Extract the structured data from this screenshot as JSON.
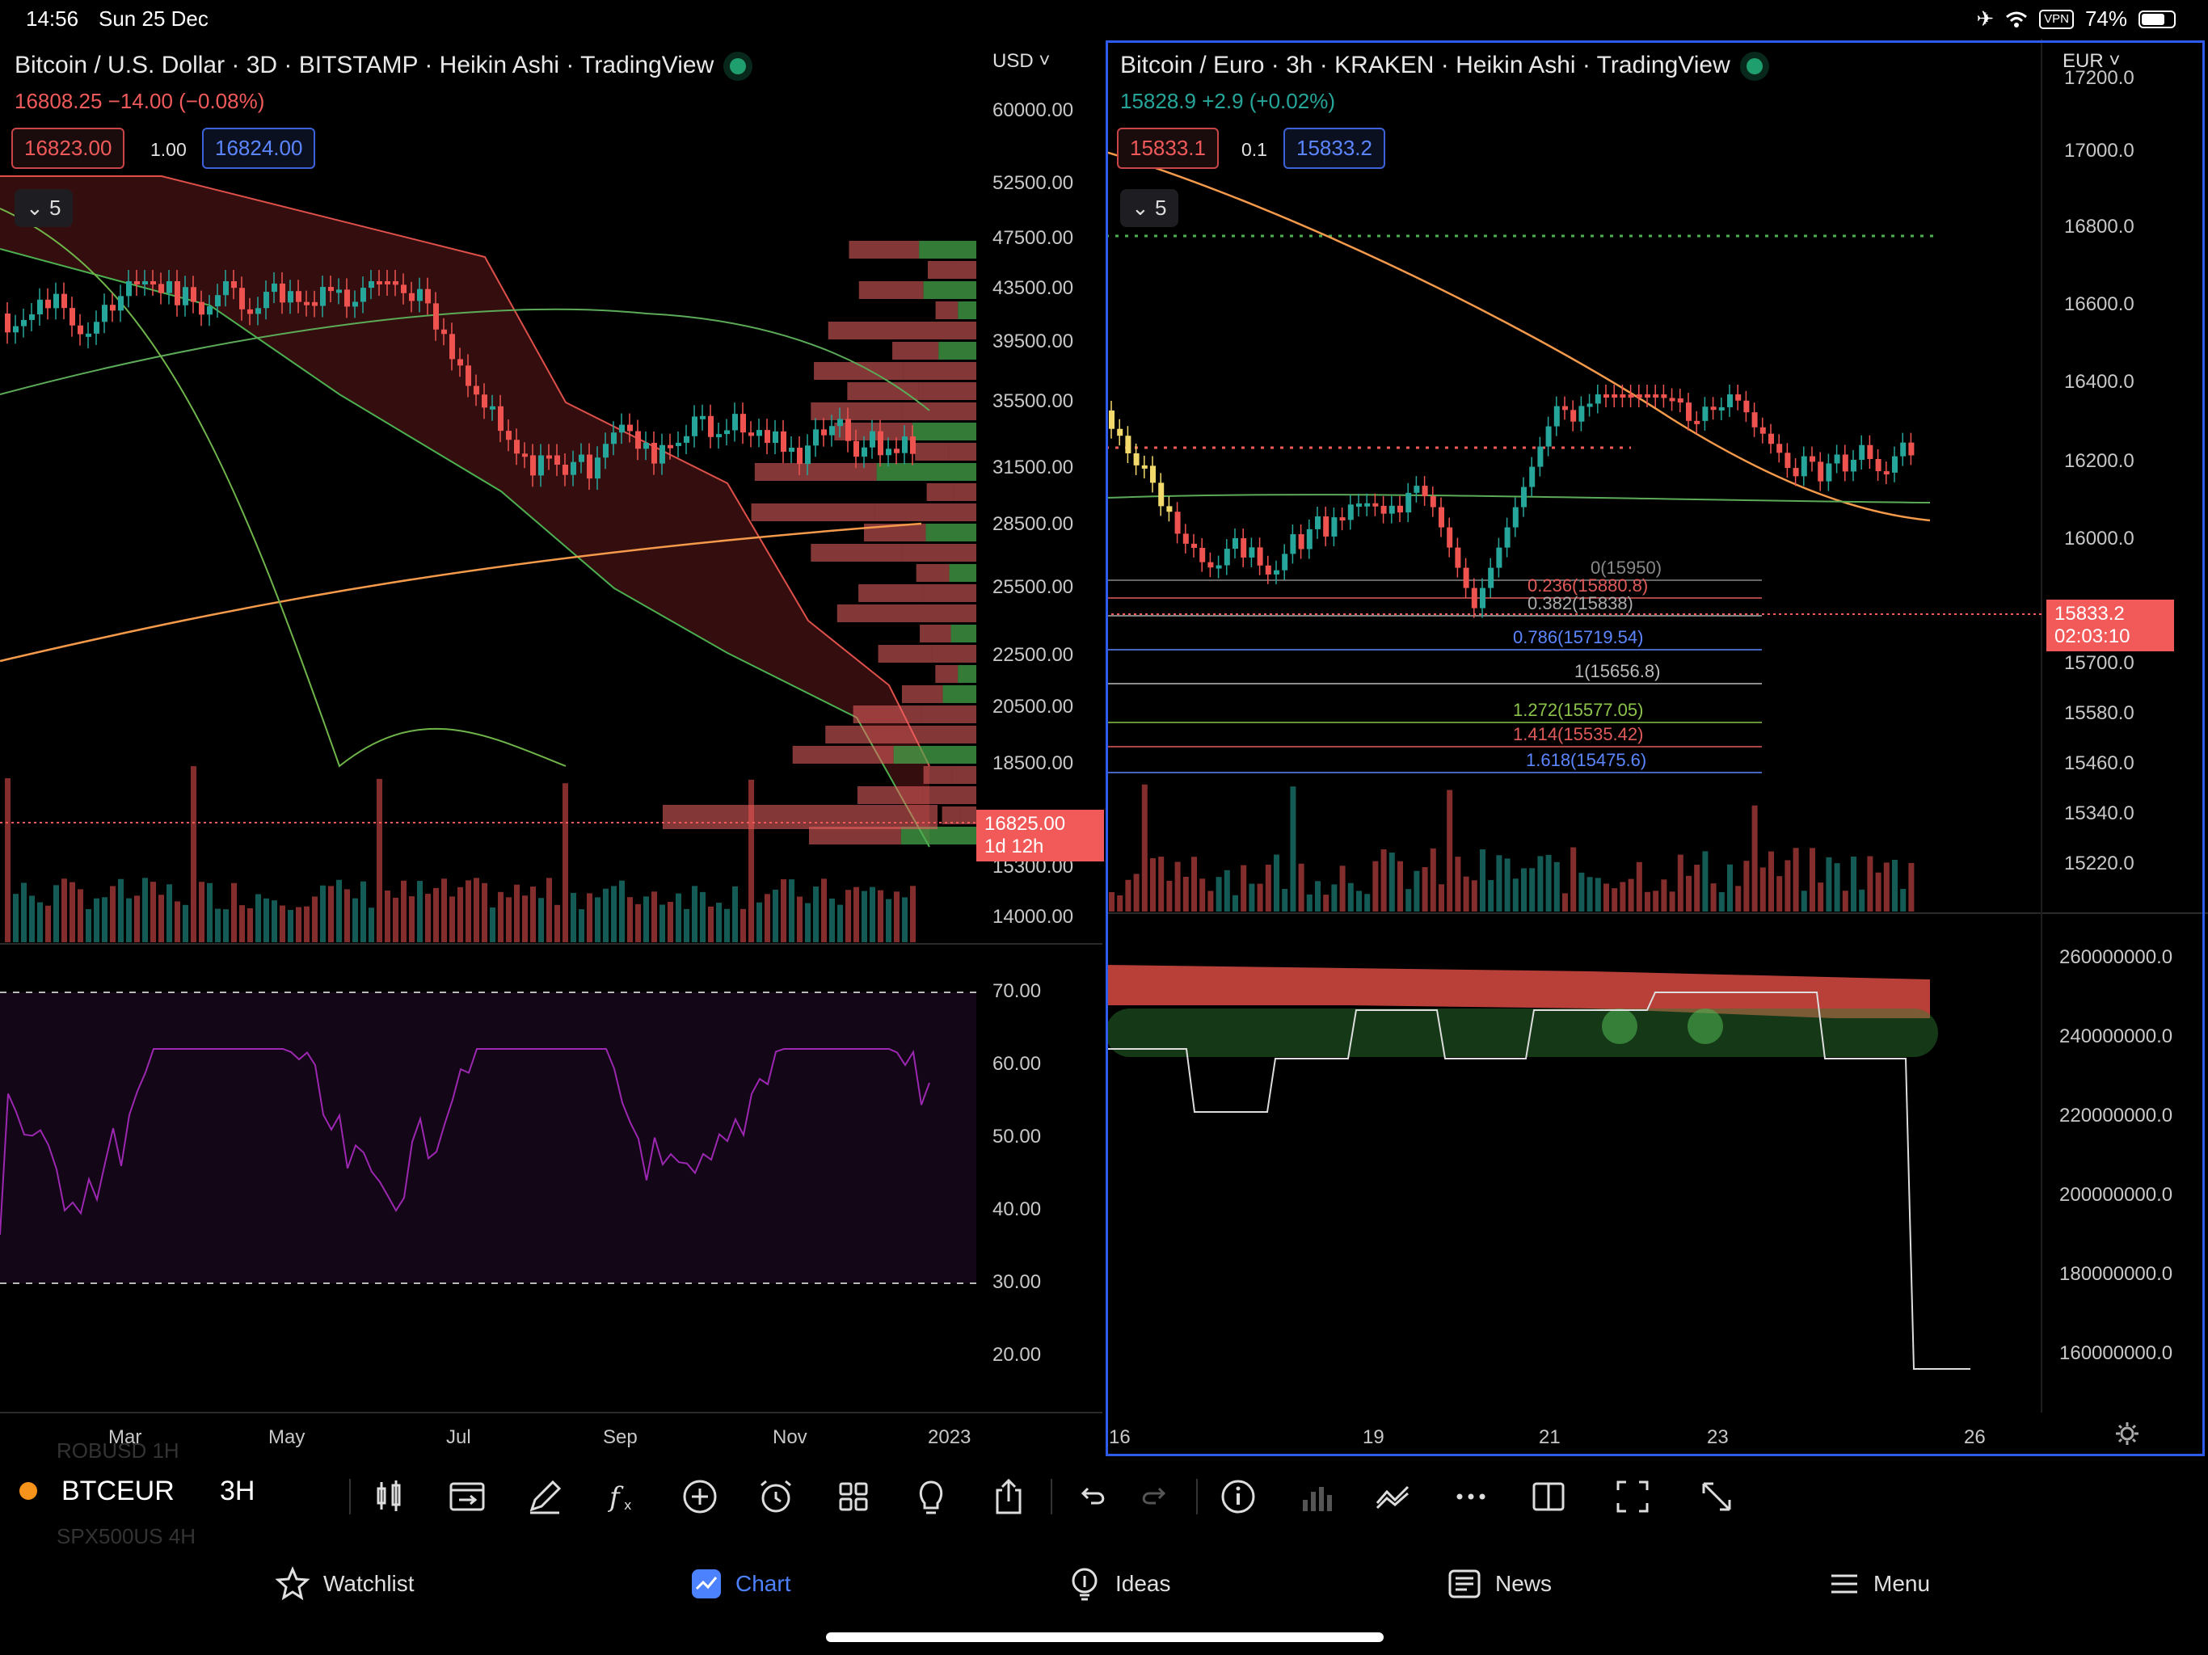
{
  "status_bar": {
    "time": "14:56",
    "date": "Sun 25 Dec",
    "vpn": "VPN",
    "battery": "74%",
    "battery_level": 0.74
  },
  "left_pane": {
    "title": "Bitcoin / U.S. Dollar · 3D · BITSTAMP · Heikin Ashi · TradingView",
    "quote": "16808.25 −14.00 (−0.08%)",
    "bid": "16823.00",
    "spread": "1.00",
    "ask": "16824.00",
    "indicators_count": "5",
    "currency": "USD",
    "price_axis": [
      "60000.00",
      "52500.00",
      "47500.00",
      "43500.00",
      "39500.00",
      "35500.00",
      "31500.00",
      "28500.00",
      "25500.00",
      "22500.00",
      "20500.00",
      "18500.00",
      "15300.00",
      "14000.00"
    ],
    "last_price": "16825.00",
    "countdown": "1d 12h",
    "rsi_axis": [
      "70.00",
      "60.00",
      "50.00",
      "40.00",
      "30.00",
      "20.00"
    ],
    "time_axis": [
      "Mar",
      "May",
      "Jul",
      "Sep",
      "Nov",
      "2023"
    ]
  },
  "right_pane": {
    "title": "Bitcoin / Euro · 3h · KRAKEN · Heikin Ashi · TradingView",
    "quote": "15828.9 +2.9 (+0.02%)",
    "bid": "15833.1",
    "spread": "0.1",
    "ask": "15833.2",
    "indicators_count": "5",
    "currency": "EUR",
    "price_axis": [
      "17200.0",
      "17000.0",
      "16800.0",
      "16600.0",
      "16400.0",
      "16200.0",
      "16000.0",
      "15700.0",
      "15580.0",
      "15460.0",
      "15340.0",
      "15220.0"
    ],
    "last_price": "15833.2",
    "countdown": "02:03:10",
    "lower_axis": [
      "260000000.0",
      "240000000.0",
      "220000000.0",
      "200000000.0",
      "180000000.0",
      "160000000.0"
    ],
    "time_axis": [
      "16",
      "19",
      "21",
      "23",
      "26"
    ],
    "fib_levels": [
      "0(15950)",
      "0.236(15880.8)",
      "0.382(15838)",
      "0.786(15719.54)",
      "1(15656.8)",
      "1.272(15577.05)",
      "1.414(15535.42)",
      "1.618(15475.6)"
    ]
  },
  "symbol_bar": {
    "symbol": "BTCEUR",
    "interval": "3H",
    "ghost_above": "ROBUSD 1H",
    "ghost_below": "SPX500US 4H"
  },
  "tabs": [
    {
      "label": "Watchlist",
      "icon": "star-icon"
    },
    {
      "label": "Chart",
      "icon": "chart-icon"
    },
    {
      "label": "Ideas",
      "icon": "lightbulb-icon"
    },
    {
      "label": "News",
      "icon": "news-icon"
    },
    {
      "label": "Menu",
      "icon": "menu-icon"
    }
  ],
  "colors": {
    "up": "#26a69a",
    "down": "#ef5350",
    "accent": "#2962ff",
    "orange": "#f59a4a",
    "rsi": "#9c27b0"
  }
}
